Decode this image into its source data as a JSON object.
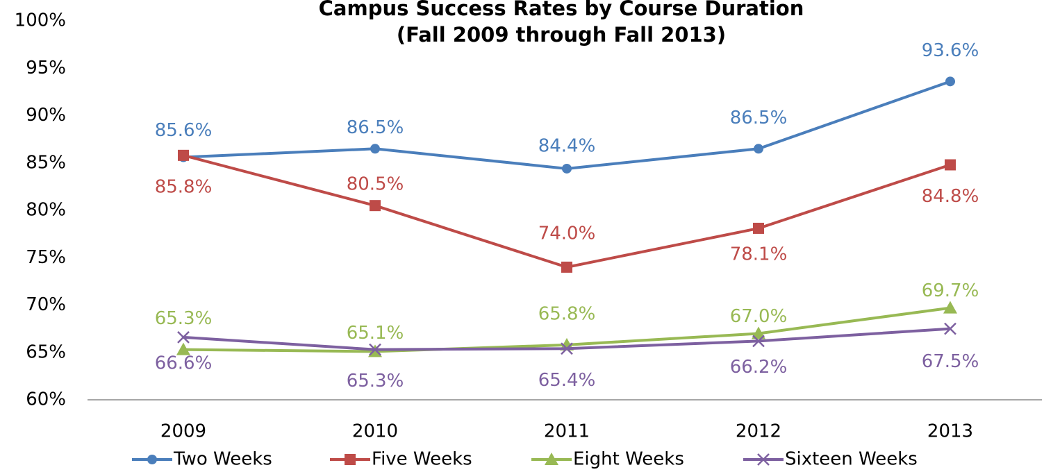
{
  "chart_data": {
    "type": "line",
    "title": "Campus Success Rates by Course Duration",
    "subtitle": "(Fall 2009 through Fall 2013)",
    "categories": [
      "2009",
      "2010",
      "2011",
      "2012",
      "2013"
    ],
    "series": [
      {
        "name": "Two Weeks",
        "color": "#4a7ebb",
        "marker": "circle",
        "values": [
          85.6,
          86.5,
          84.4,
          86.5,
          93.6
        ],
        "value_labels": [
          "85.6%",
          "86.5%",
          "84.4%",
          "86.5%",
          "93.6%"
        ]
      },
      {
        "name": "Five Weeks",
        "color": "#be4b48",
        "marker": "square",
        "values": [
          85.8,
          80.5,
          74.0,
          78.1,
          84.8
        ],
        "value_labels": [
          "85.8%",
          "80.5%",
          "74.0%",
          "78.1%",
          "84.8%"
        ]
      },
      {
        "name": "Eight Weeks",
        "color": "#98b954",
        "marker": "triangle",
        "values": [
          65.3,
          65.1,
          65.8,
          67.0,
          69.7
        ],
        "value_labels": [
          "65.3%",
          "65.1%",
          "65.8%",
          "67.0%",
          "69.7%"
        ]
      },
      {
        "name": "Sixteen Weeks",
        "color": "#7d60a0",
        "marker": "x",
        "values": [
          66.6,
          65.3,
          65.4,
          66.2,
          67.5
        ],
        "value_labels": [
          "66.6%",
          "65.3%",
          "65.4%",
          "66.2%",
          "67.5%"
        ]
      }
    ],
    "ylim": [
      60,
      100
    ],
    "yticks": [
      {
        "value": 60,
        "label": "60%"
      },
      {
        "value": 65,
        "label": "65%"
      },
      {
        "value": 70,
        "label": "70%"
      },
      {
        "value": 75,
        "label": "75%"
      },
      {
        "value": 80,
        "label": "80%"
      },
      {
        "value": 85,
        "label": "85%"
      },
      {
        "value": 90,
        "label": "90%"
      },
      {
        "value": 95,
        "label": "95%"
      },
      {
        "value": 100,
        "label": "100%"
      }
    ],
    "grid": false,
    "legend": "bottom"
  }
}
